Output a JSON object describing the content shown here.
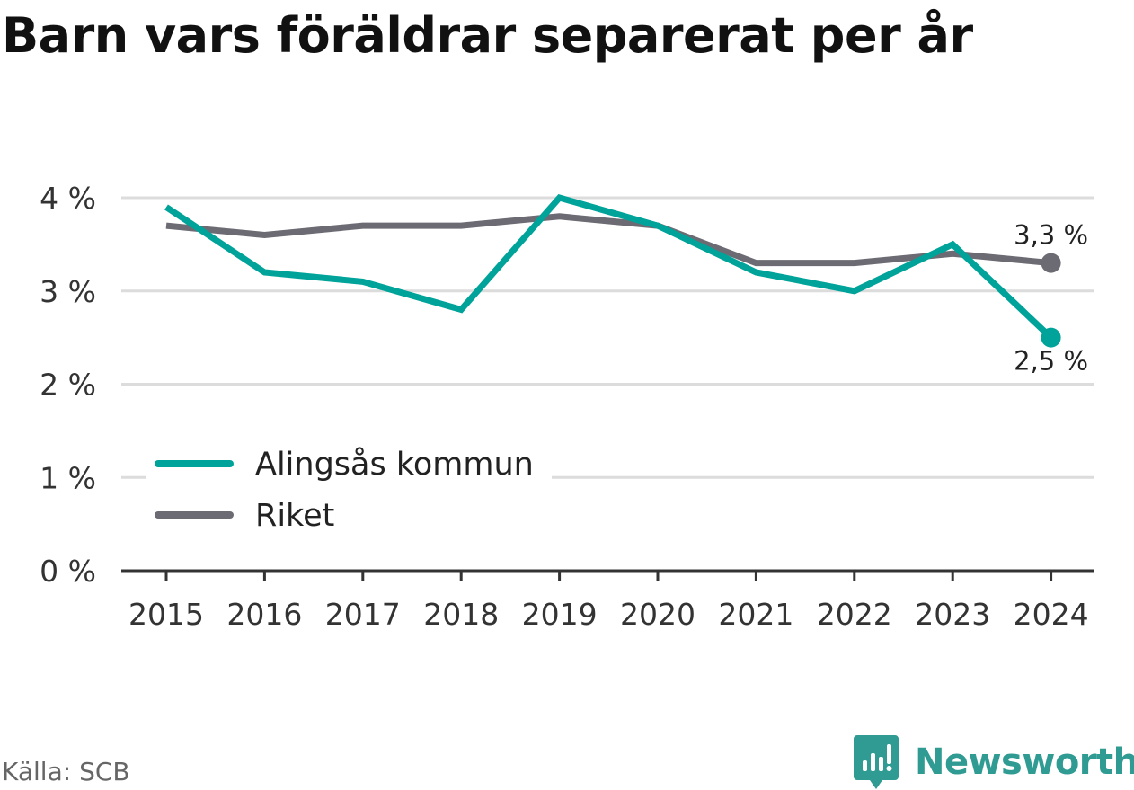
{
  "title": "Barn vars föräldrar separerat per år",
  "source": "Källa: SCB",
  "brand": "Newsworthy",
  "colors": {
    "alingsas": "#00a399",
    "riket": "#6c6b73",
    "grid": "#dcdcdc",
    "axis": "#333333",
    "brand": "#2f9b92"
  },
  "chart_data": {
    "type": "line",
    "title": "Barn vars föräldrar separerat per år",
    "x": [
      "2015",
      "2016",
      "2017",
      "2018",
      "2019",
      "2020",
      "2021",
      "2022",
      "2023",
      "2024"
    ],
    "y_ticks": [
      "0 %",
      "1 %",
      "2 %",
      "3 %",
      "4 %"
    ],
    "ylim": [
      0,
      4
    ],
    "grid": true,
    "legend_position": "bottom-left",
    "series": [
      {
        "name": "Alingsås kommun",
        "color": "#00a399",
        "values": [
          3.9,
          3.2,
          3.1,
          2.8,
          4.0,
          3.7,
          3.2,
          3.0,
          3.5,
          2.5
        ],
        "end_label": "2,5 %"
      },
      {
        "name": "Riket",
        "color": "#6c6b73",
        "values": [
          3.7,
          3.6,
          3.7,
          3.7,
          3.8,
          3.7,
          3.3,
          3.3,
          3.4,
          3.3
        ],
        "end_label": "3,3 %"
      }
    ]
  }
}
